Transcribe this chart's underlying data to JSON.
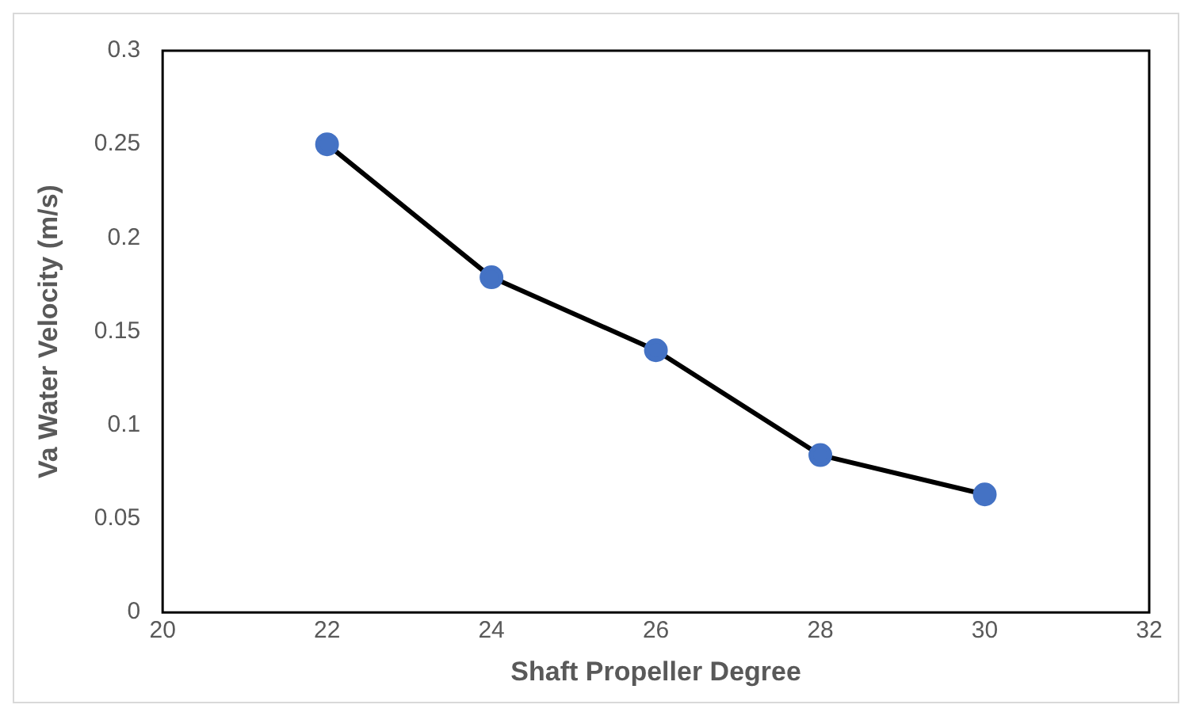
{
  "chart_data": {
    "type": "line",
    "xlabel": "Shaft Propeller Degree",
    "ylabel": "Va Water Velocity (m/s)",
    "x": [
      22,
      24,
      26,
      28,
      30
    ],
    "series": [
      {
        "color": "#000000",
        "values": [
          0.25,
          0.179,
          0.14,
          0.084,
          0.063
        ]
      }
    ],
    "marker": "circle",
    "line_style": "solid",
    "grid": false,
    "legend": false,
    "xlim": [
      20,
      32
    ],
    "xticks": [
      20,
      22,
      24,
      26,
      28,
      30,
      32
    ],
    "ylim": [
      0,
      0.3
    ],
    "yticks": [
      0,
      0.05,
      0.1,
      0.15,
      0.2,
      0.25,
      0.3
    ]
  }
}
